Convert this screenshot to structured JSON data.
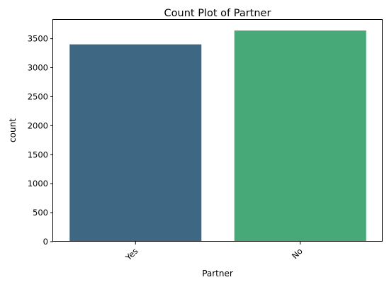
{
  "chart_data": {
    "type": "bar",
    "title": "Count Plot of Partner",
    "xlabel": "Partner",
    "ylabel": "count",
    "categories": [
      "Yes",
      "No"
    ],
    "values": [
      3402,
      3641
    ],
    "colors": [
      "#3e6783",
      "#47a878"
    ],
    "ylim": [
      0,
      3825
    ],
    "yticks": [
      0,
      500,
      1000,
      1500,
      2000,
      2500,
      3000,
      3500
    ],
    "ytick_labels": [
      "0",
      "500",
      "1000",
      "1500",
      "2000",
      "2500",
      "3000",
      "3500"
    ],
    "xtick_rotation_deg": 45,
    "grid": false,
    "legend": "none"
  }
}
